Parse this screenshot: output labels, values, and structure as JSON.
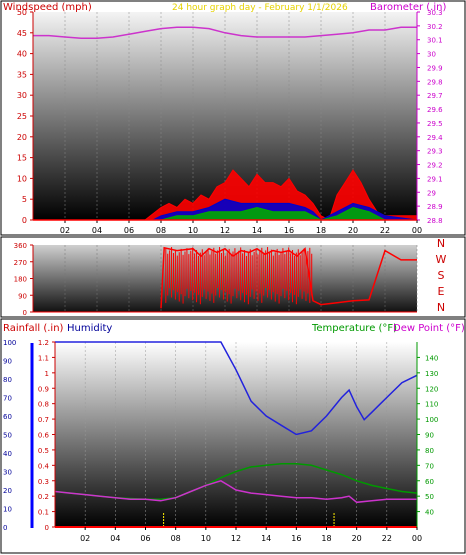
{
  "panel1": {
    "header_left": "Windspeed (mph)",
    "header_center": "24 hour graph day - February 1/1/2026",
    "header_right": "Barometer (.in)"
  },
  "panel3": {
    "header_rain": "Rainfall (.in)",
    "header_humidity": "Humidity",
    "header_temp": "Temperature (°F)",
    "header_dew": "Dew Point (°F)"
  },
  "colors": {
    "wind": "#ff0000",
    "gust_blue": "#0000cc",
    "gust_green": "#00aa00",
    "barometer": "#cc33cc",
    "humidity": "#2222dd",
    "temperature": "#009900",
    "dewpoint": "#cc33cc",
    "rain": "#ff0000",
    "left_axis": "#cc0000",
    "right_axis": "#cc00cc",
    "hum_axis": "#000099"
  },
  "chart_data": [
    {
      "type": "area",
      "x_ticks": [
        "02",
        "04",
        "06",
        "08",
        "10",
        "12",
        "14",
        "16",
        "18",
        "20",
        "22",
        "00"
      ],
      "y_left_label": "Windspeed (mph)",
      "y_left_ticks": [
        0,
        5,
        10,
        15,
        20,
        25,
        30,
        35,
        40,
        45,
        50
      ],
      "y_left_lim": [
        0,
        50
      ],
      "y_right_label": "Barometer (.in)",
      "y_right_ticks": [
        "28.8",
        "28.9",
        "29",
        "29.1",
        "29.2",
        "29.3",
        "29.4",
        "29.5",
        "29.6",
        "29.7",
        "29.8",
        "29.9",
        "30",
        "30.1",
        "30.2",
        "30.3"
      ],
      "y_right_lim": [
        28.8,
        30.3
      ],
      "series": [
        {
          "name": "Barometer",
          "axis": "right",
          "x": [
            0,
            1,
            2,
            3,
            4,
            5,
            6,
            7,
            8,
            9,
            10,
            11,
            12,
            13,
            14,
            15,
            16,
            17,
            18,
            19,
            20,
            21,
            22,
            23,
            24
          ],
          "y": [
            30.13,
            30.13,
            30.12,
            30.11,
            30.11,
            30.12,
            30.14,
            30.16,
            30.18,
            30.19,
            30.19,
            30.18,
            30.15,
            30.13,
            30.12,
            30.12,
            30.12,
            30.12,
            30.13,
            30.14,
            30.15,
            30.17,
            30.17,
            30.19,
            30.19
          ]
        },
        {
          "name": "Windspeed",
          "axis": "left",
          "x": [
            0,
            7,
            8,
            8.5,
            9,
            9.5,
            10,
            10.5,
            11,
            11.5,
            12,
            12.5,
            13,
            13.5,
            14,
            14.5,
            15,
            15.5,
            16,
            16.5,
            17,
            17.5,
            18,
            18.5,
            19,
            19.5,
            20,
            20.5,
            21,
            21.5,
            22,
            24
          ],
          "y": [
            0,
            0,
            3,
            4,
            3,
            5,
            4,
            6,
            5,
            8,
            9,
            12,
            10,
            8,
            11,
            9,
            9,
            8,
            10,
            7,
            6,
            4,
            1,
            0,
            6,
            9,
            12,
            9,
            5,
            2,
            1,
            1
          ]
        },
        {
          "name": "Gust blue",
          "axis": "left",
          "x": [
            0,
            7.5,
            8,
            9,
            10,
            11,
            12,
            13,
            14,
            15,
            16,
            17,
            17.5,
            18,
            19,
            20,
            21,
            22,
            24
          ],
          "y": [
            0,
            0,
            1,
            2,
            2,
            3,
            5,
            4,
            4,
            4,
            4,
            3,
            2,
            0,
            2,
            4,
            3,
            1,
            0
          ]
        },
        {
          "name": "Gust green",
          "axis": "left",
          "x": [
            0,
            8,
            9,
            10,
            11,
            12,
            13,
            14,
            15,
            16,
            17,
            17.5,
            18,
            19,
            20,
            21,
            22,
            24
          ],
          "y": [
            0,
            0,
            1,
            1,
            2,
            2,
            2,
            3,
            2,
            2,
            2,
            1,
            0,
            1,
            3,
            2,
            0,
            0
          ]
        }
      ]
    },
    {
      "type": "line",
      "x_ticks": [],
      "y_right_ticks": [
        "N",
        "E",
        "S",
        "W",
        "N"
      ],
      "y_left_ticks": [
        0,
        90,
        180,
        270,
        360
      ],
      "y_left_lim": [
        0,
        360
      ],
      "series": [
        {
          "name": "Wind direction",
          "x": [
            8,
            8.2,
            9,
            10,
            10.5,
            11,
            11.5,
            12,
            12.5,
            13,
            13.5,
            14,
            14.5,
            15,
            15.5,
            16,
            16.5,
            17,
            17.5,
            18,
            19,
            20,
            21,
            22,
            23,
            24
          ],
          "y": [
            20,
            345,
            330,
            340,
            300,
            340,
            320,
            340,
            300,
            330,
            320,
            340,
            310,
            330,
            320,
            330,
            300,
            340,
            60,
            40,
            50,
            60,
            65,
            330,
            280,
            280
          ]
        }
      ]
    },
    {
      "type": "line",
      "x_ticks": [
        "02",
        "04",
        "06",
        "08",
        "10",
        "12",
        "14",
        "16",
        "18",
        "20",
        "22",
        "00"
      ],
      "y_rain_ticks": [
        "0",
        "0.1",
        "0.2",
        "0.3",
        "0.4",
        "0.5",
        "0.6",
        "0.7",
        "0.8",
        "0.9",
        "1",
        "1.1",
        "1.2"
      ],
      "y_rain_lim": [
        0,
        1.2
      ],
      "y_hum_ticks": [
        0,
        10,
        20,
        30,
        40,
        50,
        60,
        70,
        80,
        90,
        100
      ],
      "y_hum_lim": [
        0,
        100
      ],
      "y_temp_ticks": [
        40,
        50,
        60,
        70,
        80,
        90,
        100,
        110,
        120,
        130,
        140
      ],
      "y_temp_lim": [
        30,
        150
      ],
      "series": [
        {
          "name": "Humidity",
          "axis": "hum",
          "x": [
            0,
            2,
            4,
            6,
            8,
            10,
            11,
            12,
            13,
            14,
            15,
            16,
            17,
            18,
            19,
            19.5,
            20,
            20.5,
            21,
            22,
            23,
            24
          ],
          "y": [
            100,
            100,
            100,
            100,
            100,
            100,
            100,
            85,
            68,
            60,
            55,
            50,
            52,
            60,
            70,
            74,
            65,
            58,
            62,
            70,
            78,
            82
          ]
        },
        {
          "name": "Temperature",
          "axis": "temp",
          "x": [
            0,
            2,
            4,
            6,
            7,
            8,
            9,
            10,
            11,
            12,
            13,
            14,
            15,
            16,
            17,
            18,
            19,
            20,
            21,
            22,
            23,
            24
          ],
          "y": [
            53,
            51,
            49,
            48,
            48,
            49,
            53,
            57,
            62,
            66,
            69,
            70,
            71,
            71,
            70,
            67,
            64,
            60,
            57,
            55,
            53,
            52
          ]
        },
        {
          "name": "Dew Point",
          "axis": "temp",
          "x": [
            0,
            1,
            2,
            3,
            4,
            5,
            6,
            7,
            8,
            9,
            10,
            11,
            11.5,
            12,
            13,
            14,
            15,
            16,
            17,
            18,
            19,
            19.5,
            20,
            21,
            22,
            23,
            24
          ],
          "y": [
            53,
            52,
            51,
            50,
            49,
            48,
            48,
            47,
            49,
            53,
            57,
            60,
            57,
            54,
            52,
            51,
            50,
            49,
            49,
            48,
            49,
            50,
            46,
            47,
            48,
            48,
            48
          ]
        },
        {
          "name": "Rainfall",
          "axis": "rain",
          "x": [
            0,
            24
          ],
          "y": [
            0,
            0
          ]
        }
      ]
    }
  ]
}
